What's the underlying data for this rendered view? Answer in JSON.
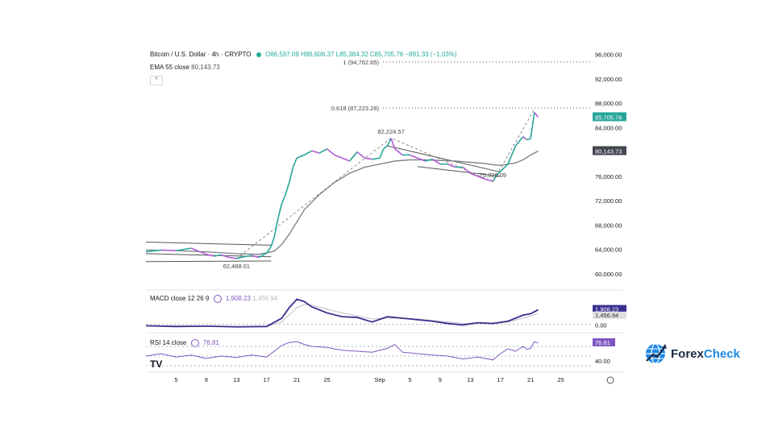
{
  "header": {
    "symbol": "Bitcoin / U.S. Dollar · 4h · CRYPTO",
    "ohlc": "O86,597.09 H86,606.37 L85,384.32 C85,705.76 −891.33 (−1.03%)"
  },
  "ema": {
    "label": "EMA 55 close",
    "value": "80,143.73"
  },
  "macd": {
    "label": "MACD close 12 26 9",
    "value1": "1,908.23",
    "value2": "1,456.94"
  },
  "rsi": {
    "label": "RSI 14 close",
    "value": "76.81"
  },
  "logo": {
    "text_part1": "Forex",
    "text_part2": "Check"
  },
  "chart_data": {
    "type": "line",
    "title": "Bitcoin / U.S. Dollar · 4h · CRYPTO",
    "price_axis": {
      "ticks": [
        "96,000.00",
        "92,000.00",
        "88,000.00",
        "84,000.00",
        "80,000.00",
        "76,000.00",
        "72,000.00",
        "68,000.00",
        "64,000.00",
        "60,000.00"
      ],
      "tick_values": [
        96000,
        92000,
        88000,
        84000,
        80000,
        76000,
        72000,
        68000,
        64000,
        60000
      ],
      "range": [
        58000,
        97000
      ]
    },
    "time_axis": {
      "labels": [
        "5",
        "9",
        "13",
        "17",
        "21",
        "25",
        "Sep",
        "5",
        "9",
        "13",
        "17",
        "21",
        "25"
      ],
      "label_x": [
        5,
        9,
        13,
        17,
        21,
        25,
        32,
        36,
        40,
        44,
        48,
        52,
        56
      ]
    },
    "price_series_x": [
      1,
      3,
      5,
      7,
      8,
      9,
      10,
      11,
      12,
      13,
      14,
      15,
      16,
      17,
      17.6,
      18,
      18.5,
      19,
      19.5,
      20,
      20.5,
      21,
      22,
      23,
      24,
      25,
      26,
      27,
      28,
      29,
      30,
      31,
      32,
      32.5,
      33,
      33.5,
      34,
      35,
      36,
      37,
      38,
      39,
      40,
      41,
      42,
      43,
      44,
      45,
      46,
      47,
      47.5,
      48,
      49,
      50,
      51,
      51.5,
      52,
      52.5,
      53
    ],
    "price_series_y": [
      63600,
      63900,
      63800,
      64200,
      63700,
      63200,
      62900,
      63100,
      62700,
      62500,
      62800,
      63000,
      62700,
      63400,
      64500,
      66000,
      69000,
      71500,
      73000,
      75000,
      77500,
      79000,
      79500,
      80200,
      79800,
      80500,
      79500,
      79000,
      78500,
      80000,
      79000,
      78800,
      79000,
      80500,
      81000,
      82200,
      80500,
      79500,
      79500,
      79000,
      78500,
      78800,
      78000,
      78000,
      77500,
      77500,
      76500,
      76000,
      75500,
      75200,
      76200,
      76800,
      78000,
      81000,
      82500,
      82000,
      82200,
      86500,
      85700
    ],
    "ema_series_x": [
      1,
      5,
      9,
      13,
      16,
      18,
      19,
      20,
      21,
      22,
      24,
      26,
      28,
      30,
      32,
      34,
      36,
      38,
      40,
      42,
      44,
      46,
      47,
      48,
      50,
      51,
      52,
      53
    ],
    "ema_series_y": [
      63900,
      63800,
      63600,
      63300,
      63200,
      63700,
      64800,
      66500,
      68500,
      70500,
      73000,
      75000,
      76500,
      77500,
      78000,
      78500,
      78700,
      78700,
      78600,
      78500,
      78300,
      78100,
      77900,
      77800,
      78200,
      78700,
      79500,
      80143
    ],
    "levels": [
      {
        "label": "1 (94,762.65)",
        "value": 94762.65
      },
      {
        "label": "0.618 (87,223.28)",
        "value": 87223.28
      }
    ],
    "annotations": [
      {
        "label": "82,224.57",
        "x": 33.5,
        "y": 82224.57
      },
      {
        "label": "75,026.09",
        "x": 47,
        "y": 75026.09
      },
      {
        "label": "62,488.01",
        "x": 13,
        "y": 62488.01
      }
    ],
    "price_badges": [
      {
        "label": "85,705.76",
        "value": 85705.76,
        "color": "#26a69a"
      },
      {
        "label": "80,143.73",
        "value": 80143.73,
        "color": "#434651"
      }
    ],
    "macd": {
      "x": [
        1,
        5,
        9,
        13,
        17,
        19,
        20,
        21,
        22,
        23,
        25,
        27,
        29,
        31,
        33,
        35,
        37,
        39,
        41,
        43,
        45,
        47,
        49,
        51,
        52,
        53
      ],
      "macd": [
        -200,
        -300,
        -250,
        -350,
        -300,
        800,
        2200,
        3300,
        3000,
        2300,
        1500,
        1000,
        900,
        300,
        1000,
        800,
        600,
        400,
        100,
        -100,
        200,
        100,
        400,
        1200,
        1400,
        1908
      ],
      "signal": [
        -200,
        -250,
        -280,
        -300,
        -300,
        300,
        1200,
        2200,
        2600,
        2500,
        2000,
        1500,
        1100,
        700,
        800,
        800,
        700,
        500,
        300,
        100,
        150,
        150,
        300,
        800,
        1100,
        1457
      ],
      "axis_ticks": [
        "1,908.23",
        "1,456.94",
        "0.00"
      ],
      "range": [
        -800,
        4000
      ]
    },
    "rsi": {
      "x": [
        1,
        3,
        5,
        7,
        9,
        11,
        13,
        15,
        17,
        18,
        19,
        20,
        21,
        22,
        23,
        25,
        27,
        29,
        31,
        33,
        34,
        35,
        37,
        39,
        41,
        43,
        45,
        47,
        48,
        49,
        50,
        51,
        51.5,
        52,
        52.5,
        53
      ],
      "values": [
        50,
        55,
        48,
        52,
        45,
        50,
        47,
        52,
        48,
        60,
        72,
        78,
        80,
        74,
        70,
        68,
        62,
        60,
        58,
        66,
        74,
        58,
        55,
        52,
        50,
        44,
        48,
        42,
        55,
        65,
        60,
        70,
        64,
        66,
        80,
        76.81
      ],
      "axis_ticks": [
        "76.81",
        "40.00"
      ],
      "range": [
        20,
        90
      ],
      "bands": [
        70,
        50,
        30
      ]
    }
  }
}
